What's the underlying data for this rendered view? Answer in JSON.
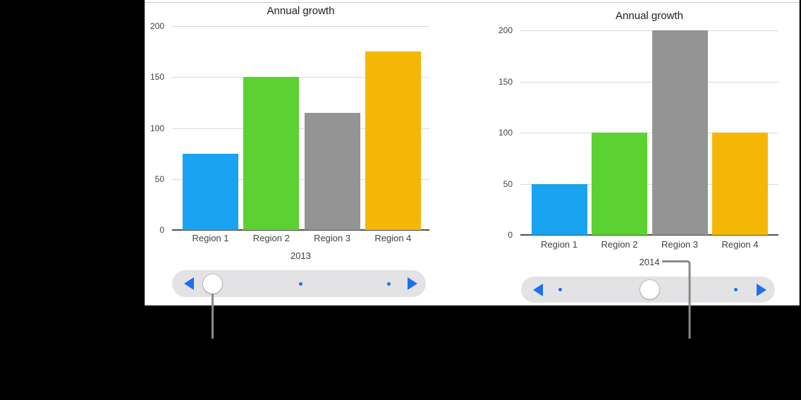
{
  "chart_data": [
    {
      "type": "bar",
      "title": "Annual growth",
      "categories": [
        "Region 1",
        "Region 2",
        "Region 3",
        "Region 4"
      ],
      "values": [
        75,
        150,
        115,
        175
      ],
      "bar_colors": [
        "#19a3f1",
        "#5bd231",
        "#949494",
        "#f5b705"
      ],
      "xlabel": "2013",
      "ylabel": "",
      "ylim": [
        0,
        200
      ],
      "yticks": [
        0,
        50,
        100,
        150,
        200
      ],
      "grid": true,
      "legend_position": "none"
    },
    {
      "type": "bar",
      "title": "Annual growth",
      "categories": [
        "Region 1",
        "Region 2",
        "Region 3",
        "Region 4"
      ],
      "values": [
        50,
        100,
        200,
        100
      ],
      "bar_colors": [
        "#19a3f1",
        "#5bd231",
        "#949494",
        "#f5b705"
      ],
      "xlabel": "2014",
      "ylabel": "",
      "ylim": [
        0,
        200
      ],
      "yticks": [
        0,
        50,
        100,
        150,
        200
      ],
      "grid": true,
      "legend_position": "none"
    }
  ],
  "scrubbers": [
    {
      "selected_year": "2013",
      "positions": 3,
      "selected_index": 0,
      "prev_icon": "triangle-left-icon",
      "next_icon": "triangle-right-icon",
      "thumb_icon": "round-drag-handle"
    },
    {
      "selected_year": "2014",
      "positions": 3,
      "selected_index": 1,
      "prev_icon": "triangle-left-icon",
      "next_icon": "triangle-right-icon",
      "thumb_icon": "round-drag-handle"
    }
  ],
  "colors": {
    "canvas_background": "#000000",
    "panel_background": "#ffffff",
    "bar_blue": "#19a3f1",
    "bar_green": "#5bd231",
    "bar_gray": "#949494",
    "bar_orange": "#f5b705",
    "control_blue": "#1d6ff2",
    "scrubber_track": "#e3e3e5",
    "scrubber_thumb": "#ffffff",
    "gridline": "#dadada",
    "axis_line": "#4e4e50",
    "callout_gray": "#8a8a8a"
  }
}
